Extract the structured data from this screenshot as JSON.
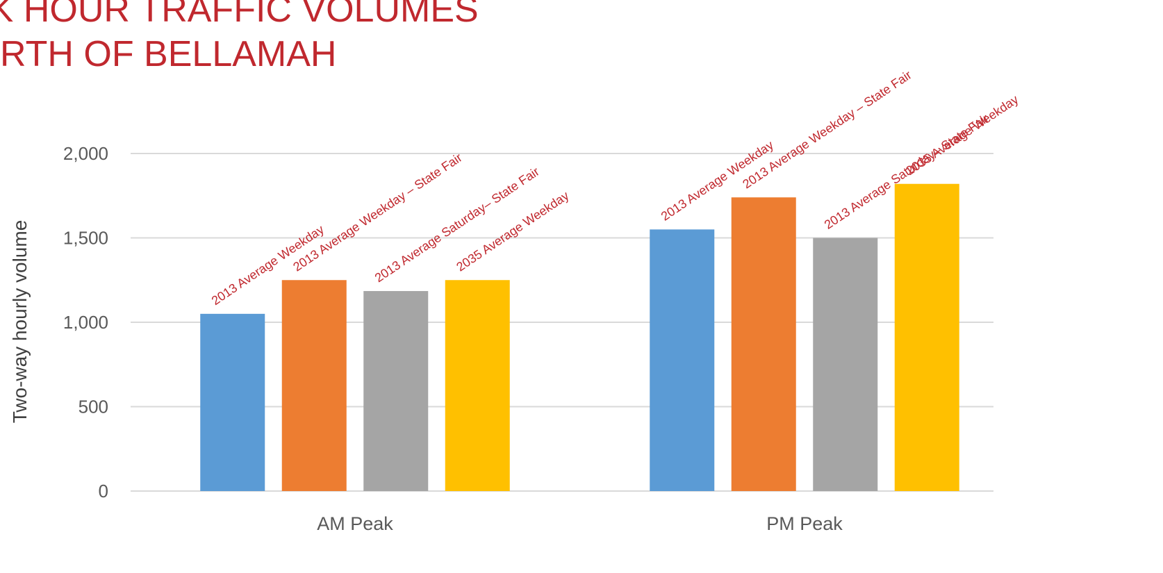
{
  "title_lines": [
    "AK HOUR TRAFFIC VOLUMES",
    "RTH OF BELLAMAH"
  ],
  "chart_data": {
    "type": "bar",
    "categories": [
      "AM Peak",
      "PM Peak"
    ],
    "ylabel": "Two-way hourly volume",
    "ylim": [
      0,
      2000
    ],
    "yticks": [
      0,
      500,
      1000,
      1500,
      2000
    ],
    "ytick_labels": [
      "0",
      "500",
      "1,000",
      "1,500",
      "2,000"
    ],
    "grid": true,
    "series": [
      {
        "label": "2013 Average Weekday",
        "color": "#5b9bd5",
        "values": [
          1050,
          1550
        ]
      },
      {
        "label": "2013 Average Weekday – State Fair",
        "color": "#ed7d31",
        "values": [
          1250,
          1740
        ]
      },
      {
        "label": "2013 Average Saturday– State Fair",
        "color": "#a5a5a5",
        "values": [
          1185,
          1500
        ]
      },
      {
        "label": "2035 Average Weekday",
        "color": "#ffc000",
        "values": [
          1250,
          1820
        ]
      }
    ]
  }
}
